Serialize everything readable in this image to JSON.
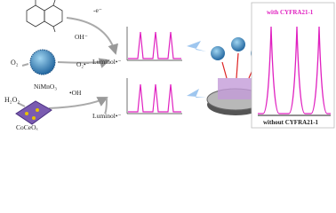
{
  "labels": {
    "o2": "O₂",
    "nimno3": "NiMnO₃",
    "h2o2": "H₂O₂",
    "coceox": "CoCeOₓ",
    "minus_e": "-e⁻",
    "oh_minus": "OH⁻",
    "superoxide": "O₂•⁻",
    "hydroxyl": "•OH",
    "luminol_top": "Luminol•⁻",
    "luminol_bottom": "Luminol•⁻"
  },
  "result_panel": {
    "with": "with CYFRA21-1",
    "without": "without CYFRA21-1"
  }
}
